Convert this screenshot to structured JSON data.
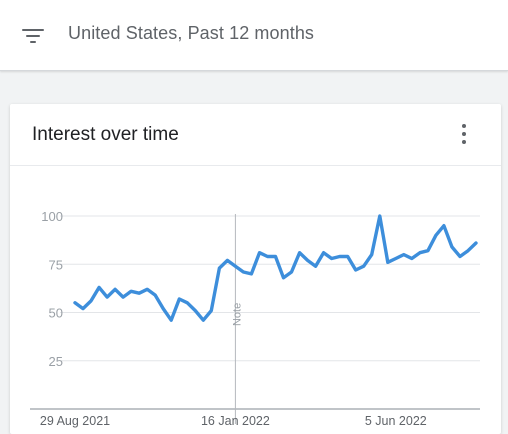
{
  "filter": {
    "icon": "filter-list-icon",
    "text": "United States, Past 12 months"
  },
  "card": {
    "title": "Interest over time",
    "menu_icon": "more-vert-icon"
  },
  "colors": {
    "series": "#3d8edb",
    "grid": "#e3e5e8",
    "note_line": "#b4b8bd",
    "axis": "#9aa0a6"
  },
  "chart_data": {
    "type": "line",
    "title": "Interest over time",
    "xlabel": "",
    "ylabel": "",
    "ylim": [
      0,
      100
    ],
    "yticks": [
      25,
      50,
      75,
      100
    ],
    "x_tick_labels": [
      {
        "label": "29 Aug 2021",
        "index": 0
      },
      {
        "label": "16 Jan 2022",
        "index": 20
      },
      {
        "label": "5 Jun 2022",
        "index": 40
      }
    ],
    "annotations": [
      {
        "label": "Note",
        "index": 20
      }
    ],
    "grid": true,
    "series": [
      {
        "values": [
          55,
          52,
          56,
          63,
          58,
          62,
          58,
          61,
          60,
          62,
          59,
          52,
          46,
          57,
          55,
          51,
          46,
          51,
          73,
          77,
          74,
          71,
          70,
          81,
          79,
          79,
          68,
          71,
          81,
          77,
          74,
          81,
          78,
          79,
          79,
          72,
          74,
          80,
          100,
          76,
          78,
          80,
          78,
          81,
          82,
          90,
          95,
          84,
          79,
          82,
          86
        ]
      }
    ]
  }
}
